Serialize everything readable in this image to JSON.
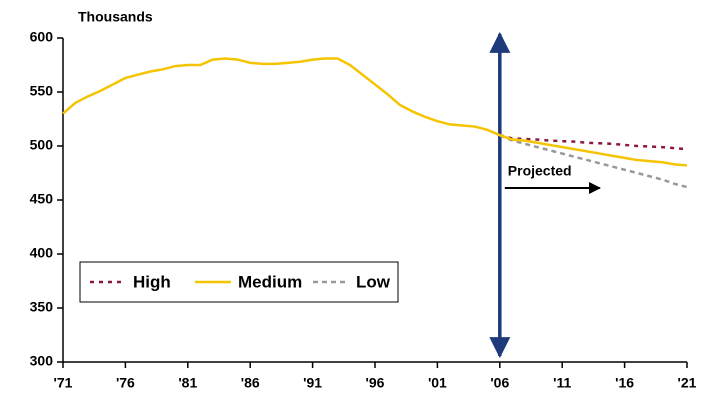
{
  "chart_data": {
    "type": "line",
    "y_label": "Thousands",
    "x": [
      1971,
      1972,
      1973,
      1974,
      1975,
      1976,
      1977,
      1978,
      1979,
      1980,
      1981,
      1982,
      1983,
      1984,
      1985,
      1986,
      1987,
      1988,
      1989,
      1990,
      1991,
      1992,
      1993,
      1994,
      1995,
      1996,
      1997,
      1998,
      1999,
      2000,
      2001,
      2002,
      2003,
      2004,
      2005,
      2006,
      2007,
      2008,
      2009,
      2010,
      2011,
      2012,
      2013,
      2014,
      2015,
      2016,
      2017,
      2018,
      2019,
      2020,
      2021
    ],
    "series": [
      {
        "name": "High",
        "color": "#8b1a3a",
        "style": "dotted",
        "values": [
          null,
          null,
          null,
          null,
          null,
          null,
          null,
          null,
          null,
          null,
          null,
          null,
          null,
          null,
          null,
          null,
          null,
          null,
          null,
          null,
          null,
          null,
          null,
          null,
          null,
          null,
          null,
          null,
          null,
          null,
          null,
          null,
          null,
          null,
          null,
          510,
          507,
          506.5,
          506,
          505,
          504.5,
          504,
          503,
          502.5,
          502,
          501,
          500,
          499.5,
          499,
          498,
          497
        ]
      },
      {
        "name": "Medium",
        "color": "#f5c400",
        "style": "solid",
        "values": [
          530,
          540,
          546,
          551,
          557,
          563,
          566,
          569,
          571,
          574,
          575,
          575,
          580,
          581,
          580,
          577,
          576,
          576,
          577,
          578,
          580,
          581,
          581,
          575,
          566,
          557,
          548,
          538,
          532,
          527,
          523,
          520,
          519,
          518,
          515,
          510,
          506,
          505,
          503,
          501,
          499,
          497,
          495,
          493,
          491,
          489,
          487,
          486,
          485,
          483,
          482
        ]
      },
      {
        "name": "Low",
        "color": "#999999",
        "style": "dashed",
        "values": [
          null,
          null,
          null,
          null,
          null,
          null,
          null,
          null,
          null,
          null,
          null,
          null,
          null,
          null,
          null,
          null,
          null,
          null,
          null,
          null,
          null,
          null,
          null,
          null,
          null,
          null,
          null,
          null,
          null,
          null,
          null,
          null,
          null,
          null,
          null,
          510,
          505,
          502,
          499,
          496,
          493,
          490,
          487,
          484,
          481,
          478,
          475,
          472,
          469,
          465,
          462
        ]
      }
    ],
    "xlim": [
      1971,
      2021
    ],
    "xticks": [
      {
        "value": 1971,
        "label": "'71"
      },
      {
        "value": 1976,
        "label": "'76"
      },
      {
        "value": 1981,
        "label": "'81"
      },
      {
        "value": 1986,
        "label": "'86"
      },
      {
        "value": 1991,
        "label": "'91"
      },
      {
        "value": 1996,
        "label": "'96"
      },
      {
        "value": 2001,
        "label": "'01"
      },
      {
        "value": 2006,
        "label": "'06"
      },
      {
        "value": 2011,
        "label": "'11"
      },
      {
        "value": 2016,
        "label": "'16"
      },
      {
        "value": 2021,
        "label": "'21"
      }
    ],
    "ylim": [
      300,
      600
    ],
    "yticks": [
      300,
      350,
      400,
      450,
      500,
      550,
      600
    ],
    "grid": false,
    "legend": "lower left",
    "annotations": [
      {
        "text": "Projected",
        "x": 2006
      }
    ]
  }
}
